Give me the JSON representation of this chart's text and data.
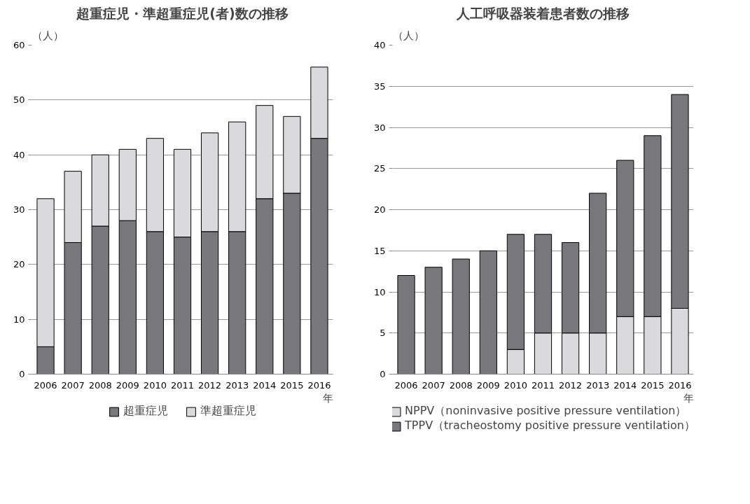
{
  "chart_data": [
    {
      "type": "bar",
      "title": "超重症児・準超重症児(者)数の推移",
      "ylabel": "（人）",
      "xlabel": "年",
      "stacked": true,
      "categories": [
        "2006",
        "2007",
        "2008",
        "2009",
        "2010",
        "2011",
        "2012",
        "2013",
        "2014",
        "2015",
        "2016"
      ],
      "series": [
        {
          "name": "超重症児",
          "color": "#77777c",
          "values": [
            5,
            24,
            27,
            28,
            26,
            25,
            26,
            26,
            32,
            33,
            43
          ]
        },
        {
          "name": "準超重症児",
          "color": "#dadadc",
          "values": [
            27,
            13,
            13,
            13,
            17,
            16,
            18,
            20,
            17,
            14,
            13
          ]
        }
      ],
      "ylim": [
        0,
        60
      ],
      "yticks": [
        0,
        10,
        20,
        30,
        40,
        50,
        60
      ],
      "grid": "y",
      "legend": "bottom"
    },
    {
      "type": "bar",
      "title": "人工呼吸器装着患者数の推移",
      "ylabel": "（人）",
      "xlabel": "年",
      "stacked": true,
      "categories": [
        "2006",
        "2007",
        "2008",
        "2009",
        "2010",
        "2011",
        "2012",
        "2013",
        "2014",
        "2015",
        "2016"
      ],
      "series": [
        {
          "name": "NPPV（noninvasive positive pressure ventilation）",
          "color": "#dadadc",
          "values": [
            0,
            0,
            0,
            0,
            3,
            5,
            5,
            5,
            7,
            7,
            8
          ]
        },
        {
          "name": "TPPV（tracheostomy positive pressure ventilation）",
          "color": "#77777c",
          "values": [
            12,
            13,
            14,
            15,
            14,
            12,
            11,
            17,
            19,
            22,
            26
          ]
        }
      ],
      "ylim": [
        0,
        40
      ],
      "yticks": [
        0,
        5,
        10,
        15,
        20,
        25,
        30,
        35,
        40
      ],
      "grid": "y",
      "legend": "bottom"
    }
  ]
}
